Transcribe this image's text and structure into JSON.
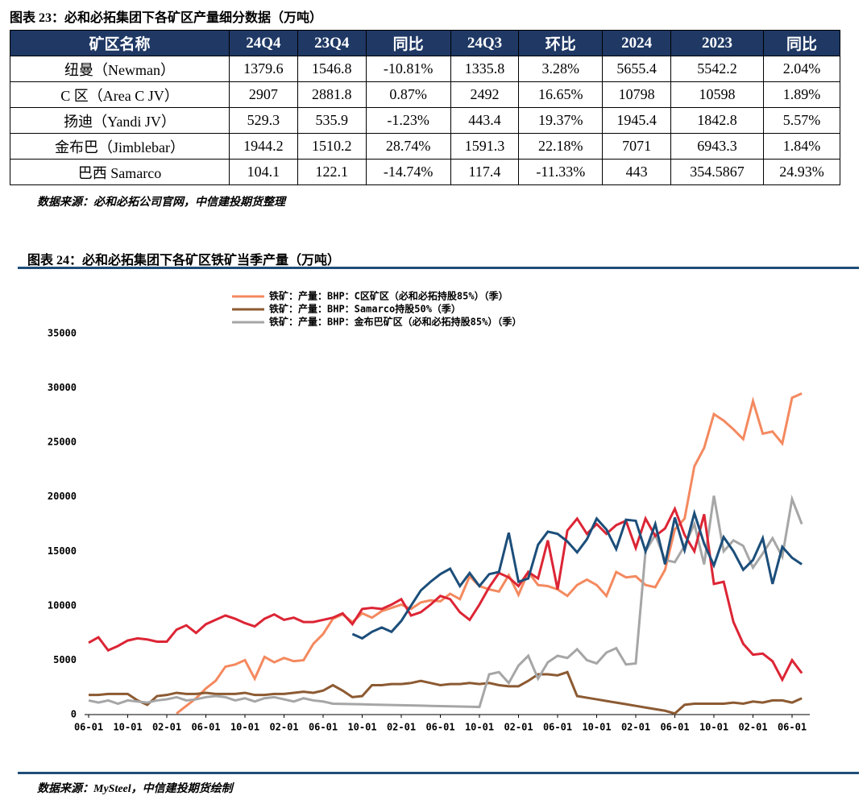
{
  "table": {
    "title": "图表 23：必和必拓集团下各矿区产量细分数据（万吨）",
    "header": [
      "矿区名称",
      "24Q4",
      "23Q4",
      "同比",
      "24Q3",
      "环比",
      "2024",
      "2023",
      "同比"
    ],
    "rows": [
      [
        "纽曼（Newman）",
        "1379.6",
        "1546.8",
        "-10.81%",
        "1335.8",
        "3.28%",
        "5655.4",
        "5542.2",
        "2.04%"
      ],
      [
        "C 区（Area C JV）",
        "2907",
        "2881.8",
        "0.87%",
        "2492",
        "16.65%",
        "10798",
        "10598",
        "1.89%"
      ],
      [
        "扬迪（Yandi JV）",
        "529.3",
        "535.9",
        "-1.23%",
        "443.4",
        "19.37%",
        "1945.4",
        "1842.8",
        "5.57%"
      ],
      [
        "金布巴（Jimblebar）",
        "1944.2",
        "1510.2",
        "28.74%",
        "1591.3",
        "22.18%",
        "7071",
        "6943.3",
        "1.84%"
      ],
      [
        "巴西 Samarco",
        "104.1",
        "122.1",
        "-14.74%",
        "117.4",
        "-11.33%",
        "443",
        "354.5867",
        "24.93%"
      ]
    ],
    "source": "数据来源：必和必拓公司官网，中信建投期货整理"
  },
  "figure": {
    "title": "图表 24：必和必拓集团下各矿区铁矿当季产量（万吨）",
    "source": "数据来源：MySteel，中信建投期货绘制"
  },
  "chart_data": {
    "type": "line",
    "categories": [
      "06-01",
      null,
      null,
      null,
      "10-01",
      null,
      null,
      null,
      "02-01",
      null,
      null,
      null,
      "06-01",
      null,
      null,
      null,
      "10-01",
      null,
      null,
      null,
      "02-01",
      null,
      null,
      null,
      "06-01",
      null,
      null,
      null,
      "10-01",
      null,
      null,
      null,
      "02-01",
      null,
      null,
      null,
      "06-01",
      null,
      null,
      null,
      "10-01",
      null,
      null,
      null,
      "02-01",
      null,
      null,
      null,
      "06-01",
      null,
      null,
      null,
      "10-01",
      null,
      null,
      null,
      "02-01",
      null,
      null,
      null,
      "06-01",
      null,
      null,
      null,
      "10-01",
      null,
      null,
      null,
      "02-01",
      null,
      null,
      null,
      "06-01",
      null
    ],
    "ylim": [
      0,
      35000
    ],
    "yticks": [
      0,
      5000,
      10000,
      15000,
      20000,
      25000,
      30000,
      35000
    ],
    "grid": false,
    "series": [
      {
        "name": "铁矿：产量：BHP：C区矿区（必和必拓持股85%）（季）",
        "color": "#f4895f",
        "values": [
          null,
          null,
          null,
          null,
          null,
          null,
          null,
          null,
          null,
          100,
          800,
          1500,
          2400,
          3100,
          4400,
          4600,
          5000,
          3300,
          5300,
          4800,
          5200,
          4900,
          5000,
          6500,
          7400,
          8800,
          9200,
          8500,
          9300,
          8900,
          9500,
          9800,
          10100,
          9700,
          10300,
          10500,
          10400,
          11100,
          10600,
          12700,
          11800,
          11500,
          11300,
          12800,
          11000,
          13100,
          11900,
          11800,
          11500,
          10900,
          11900,
          12400,
          11900,
          10900,
          13100,
          12600,
          12700,
          11900,
          11700,
          13300,
          17000,
          18000,
          22800,
          24500,
          27600,
          27000,
          26200,
          25300,
          28800,
          25800,
          26000,
          24900,
          29100,
          29500
        ]
      },
      {
        "name": "铁矿：产量：BHP：Samarco持股50%（季）",
        "color": "#8c5a32",
        "values": [
          1800,
          1800,
          1900,
          1900,
          1900,
          1300,
          900,
          1700,
          1800,
          2000,
          1900,
          1900,
          2000,
          1900,
          1900,
          1900,
          2000,
          1800,
          1800,
          1900,
          1900,
          2000,
          2100,
          2000,
          2200,
          2700,
          2200,
          1600,
          1700,
          2700,
          2700,
          2800,
          2800,
          2900,
          3100,
          2900,
          2700,
          2800,
          2800,
          2900,
          2800,
          2900,
          2700,
          2600,
          2600,
          3100,
          3700,
          3700,
          3600,
          3900,
          1700,
          1550,
          1400,
          1250,
          1100,
          950,
          800,
          650,
          500,
          350,
          100,
          900,
          1000,
          1000,
          1000,
          1000,
          1100,
          1000,
          1200,
          1100,
          1300,
          1300,
          1100,
          1500
        ]
      },
      {
        "name": "铁矿：产量：BHP：金布巴矿区（必和必拓持股85%）（季）",
        "color": "#a6a6a6",
        "values": [
          1300,
          1100,
          1300,
          1000,
          1300,
          1200,
          1100,
          1300,
          1400,
          1600,
          1300,
          1400,
          1600,
          1700,
          1600,
          1300,
          1500,
          1200,
          1500,
          1600,
          1400,
          1200,
          1500,
          1300,
          1200,
          1000,
          980,
          960,
          940,
          920,
          900,
          880,
          860,
          840,
          820,
          800,
          780,
          760,
          740,
          720,
          700,
          3700,
          3900,
          2900,
          4500,
          5400,
          3300,
          4800,
          5400,
          5200,
          6000,
          5000,
          4700,
          5700,
          6100,
          4600,
          4700,
          15000,
          16500,
          14200,
          14000,
          15500,
          17500,
          13800,
          20100,
          15000,
          16000,
          15500,
          13500,
          14800,
          16200,
          14500,
          19800,
          17500
        ]
      },
      {
        "color": "#dc2535",
        "values": [
          6600,
          7100,
          5900,
          6300,
          6800,
          7000,
          6900,
          6700,
          6700,
          7800,
          8200,
          7500,
          8300,
          8700,
          9100,
          8800,
          8400,
          8100,
          8800,
          9200,
          8700,
          8900,
          8500,
          8500,
          8700,
          8900,
          9300,
          8300,
          9700,
          9800,
          9700,
          10100,
          10600,
          9100,
          9400,
          10100,
          10900,
          10600,
          9400,
          8700,
          10100,
          11700,
          13000,
          12600,
          11800,
          13100,
          12500,
          16000,
          11500,
          16900,
          18000,
          16600,
          17500,
          16600,
          17400,
          17800,
          15300,
          18000,
          16400,
          17100,
          18900,
          16500,
          15000,
          18400,
          12000,
          12200,
          8500,
          6500,
          5500,
          5600,
          4900,
          3200,
          5000,
          3800
        ]
      },
      {
        "color": "#1c4e7a",
        "values": [
          null,
          null,
          null,
          null,
          null,
          null,
          null,
          null,
          null,
          null,
          null,
          null,
          null,
          null,
          null,
          null,
          null,
          null,
          null,
          null,
          null,
          null,
          null,
          null,
          null,
          null,
          null,
          7400,
          7000,
          7600,
          8000,
          7600,
          8600,
          10000,
          11400,
          12200,
          12900,
          13400,
          11800,
          13000,
          11800,
          12900,
          13100,
          16700,
          12200,
          12500,
          15600,
          16800,
          16600,
          15900,
          14900,
          16100,
          18000,
          17000,
          15200,
          17900,
          17800,
          15000,
          17500,
          13800,
          18100,
          15100,
          18500,
          15700,
          13700,
          16300,
          15000,
          13300,
          14200,
          16200,
          12000,
          15400,
          14400,
          13800
        ]
      }
    ]
  }
}
